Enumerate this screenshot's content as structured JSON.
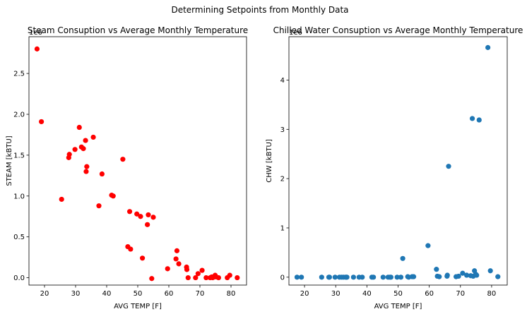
{
  "figure": {
    "suptitle": "Determining Setpoints from Monthly Data"
  },
  "chart_data": [
    {
      "type": "scatter",
      "title": "Steam Consuption vs Average Monthly Temperature",
      "xlabel": "AVG TEMP [F]",
      "ylabel": "STEAM [kBTU]",
      "y_offset_label": "1e6",
      "xlim": [
        15,
        85
      ],
      "ylim": [
        -0.09,
        2.95
      ],
      "xticks": [
        20,
        30,
        40,
        50,
        60,
        70,
        80
      ],
      "yticks": [
        0.0,
        0.5,
        1.0,
        1.5,
        2.0,
        2.5
      ],
      "ytick_labels": [
        "0.0",
        "0.5",
        "1.0",
        "1.5",
        "2.0",
        "2.5"
      ],
      "y_scale_multiplier": 1000000,
      "marker_color": "#ff0000",
      "points": [
        [
          17.6,
          2.8
        ],
        [
          19.0,
          1.91
        ],
        [
          25.5,
          0.96
        ],
        [
          27.8,
          1.47
        ],
        [
          28.0,
          1.51
        ],
        [
          29.8,
          1.57
        ],
        [
          31.2,
          1.84
        ],
        [
          31.9,
          1.6
        ],
        [
          32.5,
          1.58
        ],
        [
          33.2,
          1.68
        ],
        [
          33.4,
          1.3
        ],
        [
          33.6,
          1.36
        ],
        [
          35.7,
          1.72
        ],
        [
          37.5,
          0.88
        ],
        [
          38.5,
          1.27
        ],
        [
          41.6,
          1.01
        ],
        [
          42.1,
          1.0
        ],
        [
          45.2,
          1.45
        ],
        [
          46.8,
          0.38
        ],
        [
          47.4,
          0.81
        ],
        [
          47.7,
          0.35
        ],
        [
          49.7,
          0.78
        ],
        [
          50.9,
          0.75
        ],
        [
          51.5,
          0.24
        ],
        [
          53.1,
          0.65
        ],
        [
          53.4,
          0.77
        ],
        [
          54.5,
          -0.01
        ],
        [
          55.0,
          0.74
        ],
        [
          59.6,
          0.11
        ],
        [
          62.3,
          0.23
        ],
        [
          62.6,
          0.33
        ],
        [
          63.2,
          0.17
        ],
        [
          65.7,
          0.13
        ],
        [
          65.8,
          0.1
        ],
        [
          66.2,
          0.0
        ],
        [
          68.6,
          0.0
        ],
        [
          69.4,
          0.05
        ],
        [
          70.7,
          0.09
        ],
        [
          72.0,
          0.0
        ],
        [
          73.3,
          0.0
        ],
        [
          73.8,
          0.01
        ],
        [
          74.1,
          0.0
        ],
        [
          74.5,
          0.01
        ],
        [
          74.9,
          0.03
        ],
        [
          75.2,
          0.01
        ],
        [
          76.0,
          0.0
        ],
        [
          78.8,
          0.0
        ],
        [
          79.6,
          0.03
        ],
        [
          82.0,
          0.0
        ]
      ]
    },
    {
      "type": "scatter",
      "title": "Chilled Water Consuption vs Average Monthly Temperature",
      "xlabel": "AVG TEMP [F]",
      "ylabel": "CHW [kBTU]",
      "y_offset_label": "1e6",
      "xlim": [
        15,
        85
      ],
      "ylim": [
        -0.16,
        4.88
      ],
      "xticks": [
        20,
        30,
        40,
        50,
        60,
        70,
        80
      ],
      "yticks": [
        0,
        1,
        2,
        3,
        4
      ],
      "ytick_labels": [
        "0",
        "1",
        "2",
        "3",
        "4"
      ],
      "y_scale_multiplier": 1000000,
      "marker_color": "#1f77b4",
      "points": [
        [
          17.6,
          0.0
        ],
        [
          19.0,
          0.0
        ],
        [
          25.5,
          0.0
        ],
        [
          27.8,
          0.0
        ],
        [
          28.0,
          0.0
        ],
        [
          29.8,
          0.0
        ],
        [
          31.2,
          0.0
        ],
        [
          31.9,
          0.0
        ],
        [
          32.5,
          0.0
        ],
        [
          33.2,
          0.0
        ],
        [
          33.4,
          0.0
        ],
        [
          33.6,
          0.0
        ],
        [
          35.7,
          0.0
        ],
        [
          37.5,
          0.0
        ],
        [
          38.5,
          0.0
        ],
        [
          41.6,
          0.0
        ],
        [
          42.1,
          0.0
        ],
        [
          45.2,
          0.0
        ],
        [
          46.8,
          0.0
        ],
        [
          47.4,
          0.0
        ],
        [
          47.7,
          0.0
        ],
        [
          49.7,
          0.0
        ],
        [
          50.9,
          0.0
        ],
        [
          51.5,
          0.38
        ],
        [
          53.1,
          0.01
        ],
        [
          53.4,
          0.0
        ],
        [
          54.5,
          0.01
        ],
        [
          55.0,
          0.01
        ],
        [
          59.6,
          0.64
        ],
        [
          62.3,
          0.16
        ],
        [
          62.6,
          0.02
        ],
        [
          63.2,
          0.01
        ],
        [
          65.7,
          0.02
        ],
        [
          65.8,
          0.04
        ],
        [
          66.2,
          2.25
        ],
        [
          68.6,
          0.01
        ],
        [
          69.4,
          0.02
        ],
        [
          70.7,
          0.08
        ],
        [
          72.0,
          0.04
        ],
        [
          73.3,
          0.03
        ],
        [
          73.8,
          3.22
        ],
        [
          74.1,
          0.02
        ],
        [
          74.5,
          0.13
        ],
        [
          74.9,
          0.06
        ],
        [
          75.2,
          0.04
        ],
        [
          76.0,
          3.19
        ],
        [
          78.8,
          4.66
        ],
        [
          79.6,
          0.13
        ],
        [
          82.0,
          0.01
        ]
      ]
    }
  ]
}
